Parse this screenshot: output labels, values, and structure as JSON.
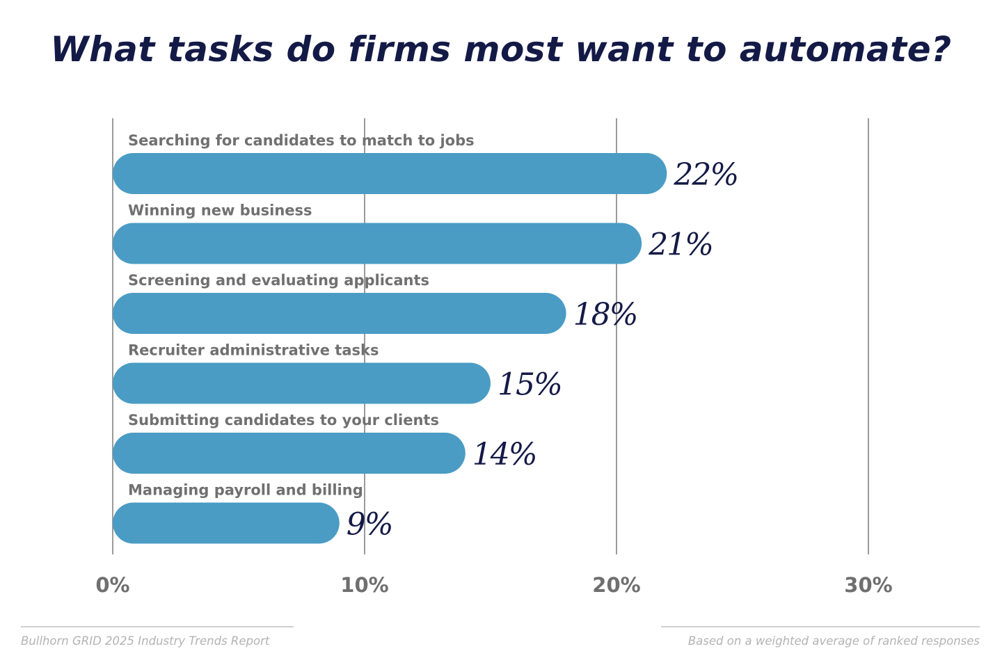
{
  "chart_data": {
    "type": "bar",
    "orientation": "horizontal",
    "title": "What tasks do firms most want to automate?",
    "categories": [
      "Searching for candidates to match to jobs",
      "Winning new business",
      "Screening and evaluating applicants",
      "Recruiter administrative tasks",
      "Submitting candidates to your clients",
      "Managing payroll and billing"
    ],
    "values": [
      22,
      21,
      18,
      15,
      14,
      9
    ],
    "value_labels": [
      "22%",
      "21%",
      "18%",
      "15%",
      "14%",
      "9%"
    ],
    "xlim": [
      0,
      30
    ],
    "xticks": [
      0,
      10,
      20,
      30
    ],
    "xtick_labels": [
      "0%",
      "10%",
      "20%",
      "30%"
    ],
    "grid": true,
    "bar_color": "#4a9cc4",
    "title_color": "#141a46"
  },
  "footer": {
    "source": "Bullhorn GRID 2025 Industry Trends Report",
    "note": "Based on a weighted average of ranked responses"
  }
}
